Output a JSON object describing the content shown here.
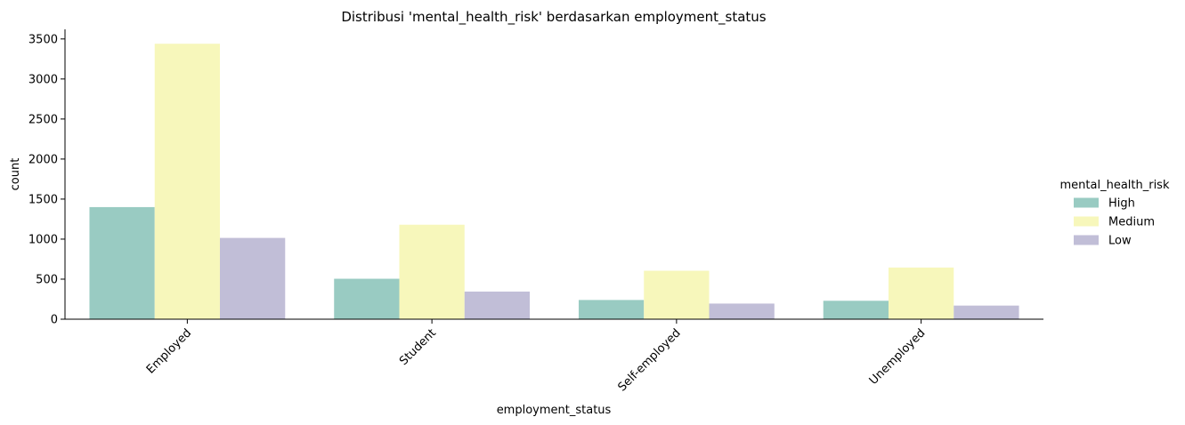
{
  "chart_data": {
    "type": "bar",
    "title": "Distribusi 'mental_health_risk' berdasarkan employment_status",
    "xlabel": "employment_status",
    "ylabel": "count",
    "categories": [
      "Employed",
      "Student",
      "Self-employed",
      "Unemployed"
    ],
    "series": [
      {
        "name": "High",
        "color": "#99cbc2",
        "values": [
          1400,
          505,
          240,
          230
        ]
      },
      {
        "name": "Medium",
        "color": "#f7f7bb",
        "values": [
          3440,
          1180,
          605,
          645
        ]
      },
      {
        "name": "Low",
        "color": "#c1bed7",
        "values": [
          1015,
          345,
          195,
          170
        ]
      }
    ],
    "ylim": [
      0,
      3620
    ],
    "yticks": [
      0,
      500,
      1000,
      1500,
      2000,
      2500,
      3000,
      3500
    ],
    "ytick_labels": [
      "0",
      "500",
      "1000",
      "1500",
      "2000",
      "2500",
      "3000",
      "3500"
    ],
    "grid": false,
    "legend": {
      "title": "mental_health_risk",
      "placement": "right"
    }
  }
}
